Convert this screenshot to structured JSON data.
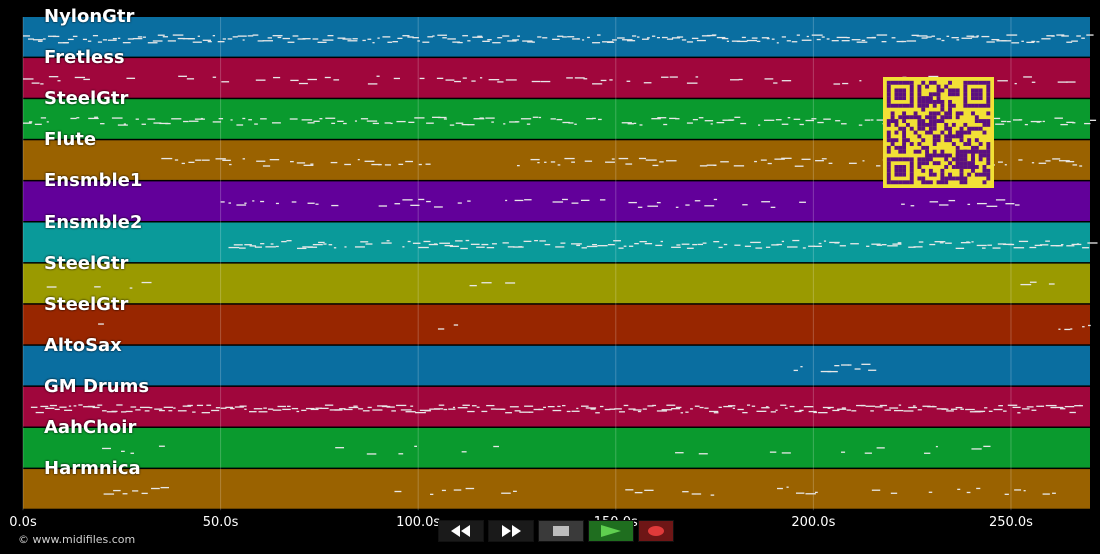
{
  "tracks": [
    {
      "name": "NylonGtr",
      "color": "#0a6ea0"
    },
    {
      "name": "Fretless",
      "color": "#a0063c"
    },
    {
      "name": "SteelGtr",
      "color": "#0a9a2e"
    },
    {
      "name": "Flute",
      "color": "#9a6200"
    },
    {
      "name": "Ensmble1",
      "color": "#62009a"
    },
    {
      "name": "Ensmble2",
      "color": "#0a9a9a"
    },
    {
      "name": "SteelGtr",
      "color": "#9a9a00"
    },
    {
      "name": "SteelGtr",
      "color": "#982600"
    },
    {
      "name": "AltoSax",
      "color": "#0a6ea0"
    },
    {
      "name": "GM Drums",
      "color": "#a0063c"
    },
    {
      "name": "AahChoir",
      "color": "#0a9a2e"
    },
    {
      "name": "Harmnica",
      "color": "#9a6200"
    }
  ],
  "timeline": {
    "ticks": [
      "0.0s",
      "50.0s",
      "100.0s",
      "150.0s",
      "200.0s",
      "250.0s"
    ],
    "tick_values": [
      0,
      50,
      100,
      150,
      200,
      250
    ],
    "max_seconds": 270
  },
  "copyright": "© www.midifiles.com",
  "transport": {
    "rewind": {
      "icon": "rewind-icon",
      "color": "#1a1a1a"
    },
    "fast_forward": {
      "icon": "fast-forward-icon",
      "color": "#1a1a1a"
    },
    "stop": {
      "icon": "stop-icon",
      "color": "#3a3a3a"
    },
    "play": {
      "icon": "play-icon",
      "color": "#1f6e1f"
    },
    "record": {
      "icon": "record-icon",
      "color": "#6e1616"
    }
  },
  "qr_code": {
    "foreground": "#5b1080",
    "background": "#f2e136"
  }
}
